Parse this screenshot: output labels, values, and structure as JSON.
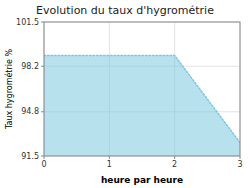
{
  "chart_data": {
    "type": "area",
    "title": "Evolution du taux d'hygrométrie",
    "xlabel": "heure par heure",
    "ylabel": "Taux hygrométrie %",
    "x": [
      0,
      2,
      3
    ],
    "values": [
      99.0,
      99.0,
      92.5
    ],
    "color": "#7ac8de",
    "line_style": "dotted",
    "xlim": [
      0,
      3
    ],
    "ylim": [
      91.5,
      101.5
    ],
    "xticks": [
      0,
      1,
      2,
      3
    ],
    "yticks": [
      91.5,
      94.8,
      98.2,
      101.5
    ],
    "grid": true
  }
}
